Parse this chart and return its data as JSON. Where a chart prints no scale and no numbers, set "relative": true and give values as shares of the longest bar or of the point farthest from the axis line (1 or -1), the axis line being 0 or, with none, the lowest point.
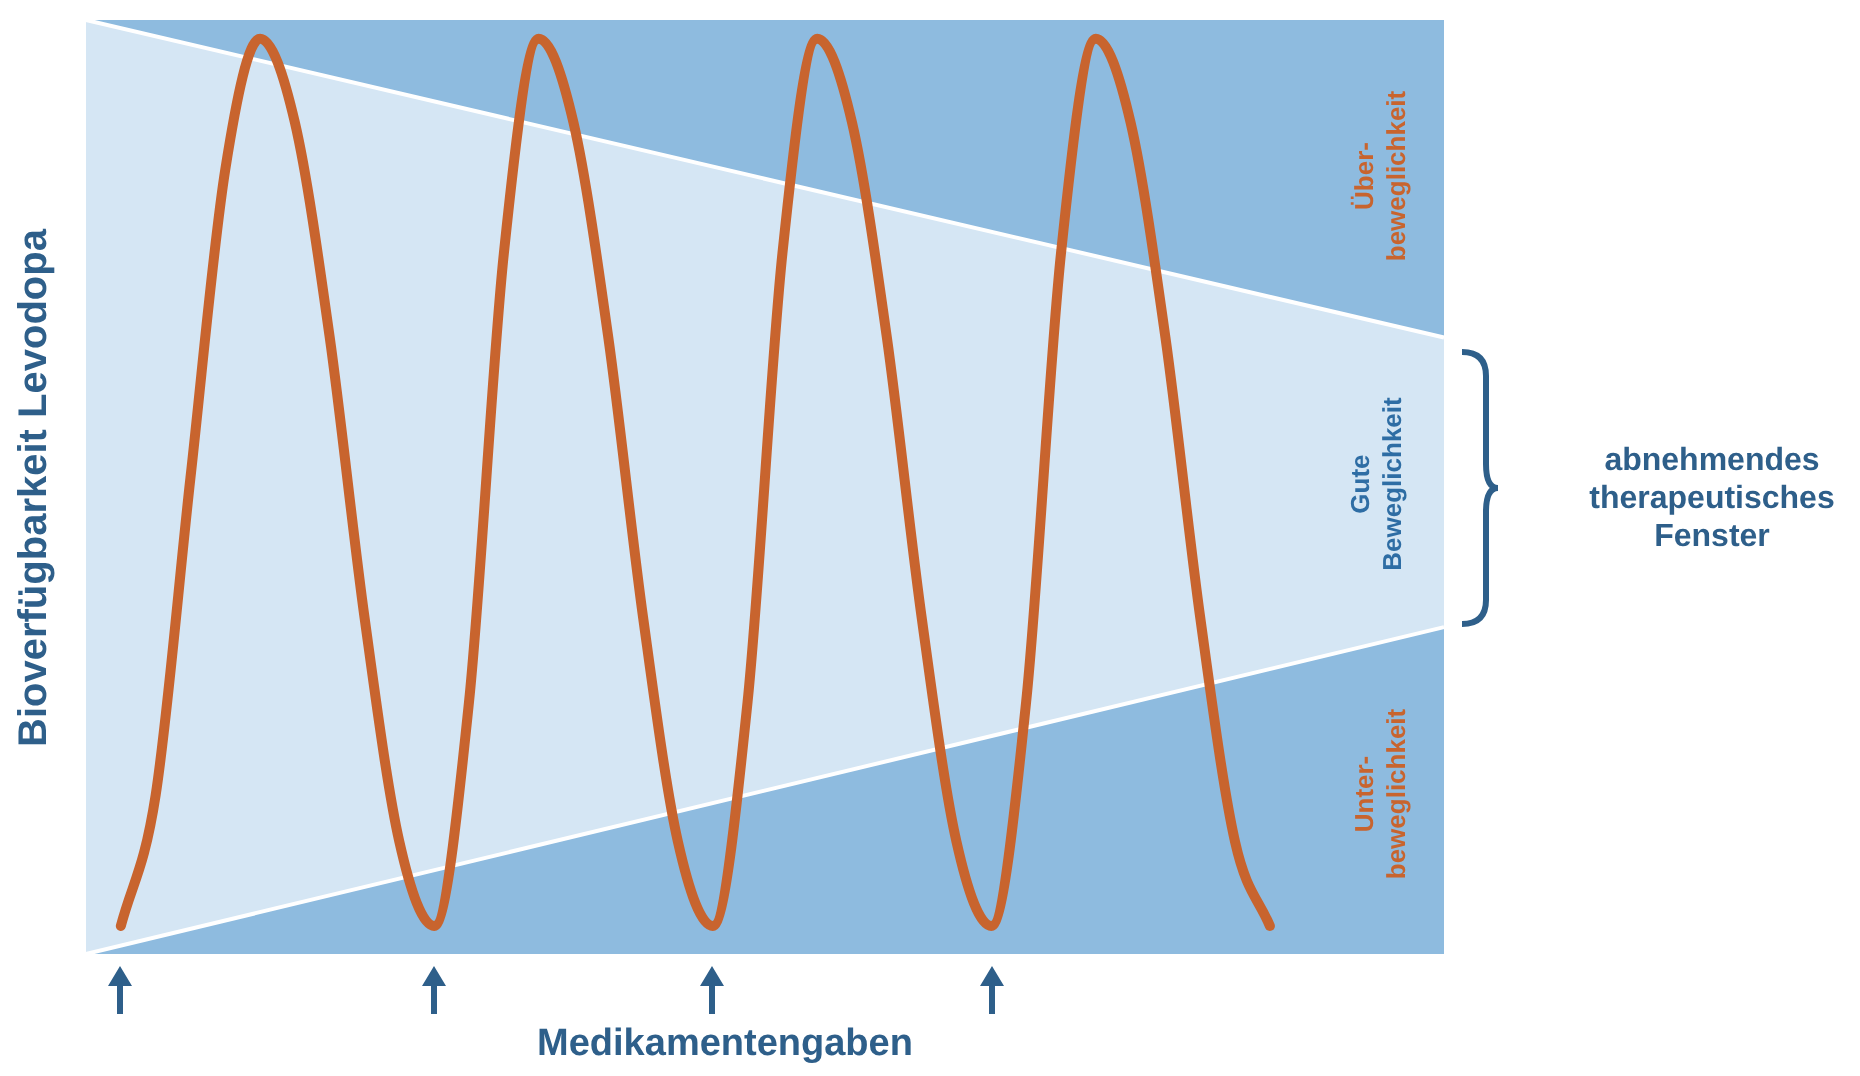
{
  "chart_data": {
    "type": "line",
    "relative": true,
    "xlabel": "Medikamentengaben",
    "ylabel": "Bioverfügbarkeit Levodopa",
    "categories": [
      null,
      null,
      null,
      null,
      null,
      null,
      null,
      null,
      null,
      null,
      null,
      null,
      null,
      null,
      null,
      null,
      null,
      null,
      null,
      null,
      null,
      null,
      null,
      null,
      null,
      null,
      null,
      null,
      null,
      null,
      null,
      null,
      null,
      null,
      null,
      null,
      null,
      null,
      null,
      null
    ],
    "series": [
      {
        "type": "area",
        "color": "#d5e6f4",
        "values": [
          1,
          null,
          null,
          null,
          null,
          null,
          null,
          null,
          null,
          null,
          null,
          null,
          null,
          null,
          null,
          null,
          null,
          null,
          null,
          null,
          null,
          null,
          null,
          null,
          null,
          null,
          null,
          null,
          null,
          null,
          null,
          null,
          null,
          null,
          null,
          null,
          null,
          null,
          null,
          0.66
        ]
      },
      {
        "type": "line",
        "color": "#ffffff",
        "values": [
          0,
          null,
          null,
          null,
          null,
          null,
          null,
          null,
          null,
          null,
          null,
          null,
          null,
          null,
          null,
          null,
          null,
          null,
          null,
          null,
          null,
          null,
          null,
          null,
          null,
          null,
          null,
          null,
          null,
          null,
          null,
          null,
          null,
          null,
          null,
          null,
          null,
          null,
          null,
          0.35
        ]
      },
      {
        "color": "#c8642e",
        "values": [
          null,
          0.03,
          0.17,
          0.51,
          0.84,
          0.98,
          0.89,
          0.66,
          0.36,
          0.12,
          0.03,
          0.27,
          0.75,
          0.98,
          0.89,
          0.66,
          0.36,
          0.12,
          0.03,
          0.27,
          0.75,
          0.98,
          0.89,
          0.66,
          0.36,
          0.12,
          0.03,
          0.27,
          0.75,
          0.98,
          0.89,
          0.66,
          0.36,
          0.12,
          0.03,
          null,
          null,
          null,
          null,
          null
        ]
      }
    ],
    "annotations": [
      "Über-\nbeweglichkeit",
      "Gute\nBeweglichkeit",
      "Unter-\nbeweglichkeit",
      "abnehmendes\ntherapeutisches\nFenster"
    ],
    "legend": false,
    "marker": "none"
  }
}
